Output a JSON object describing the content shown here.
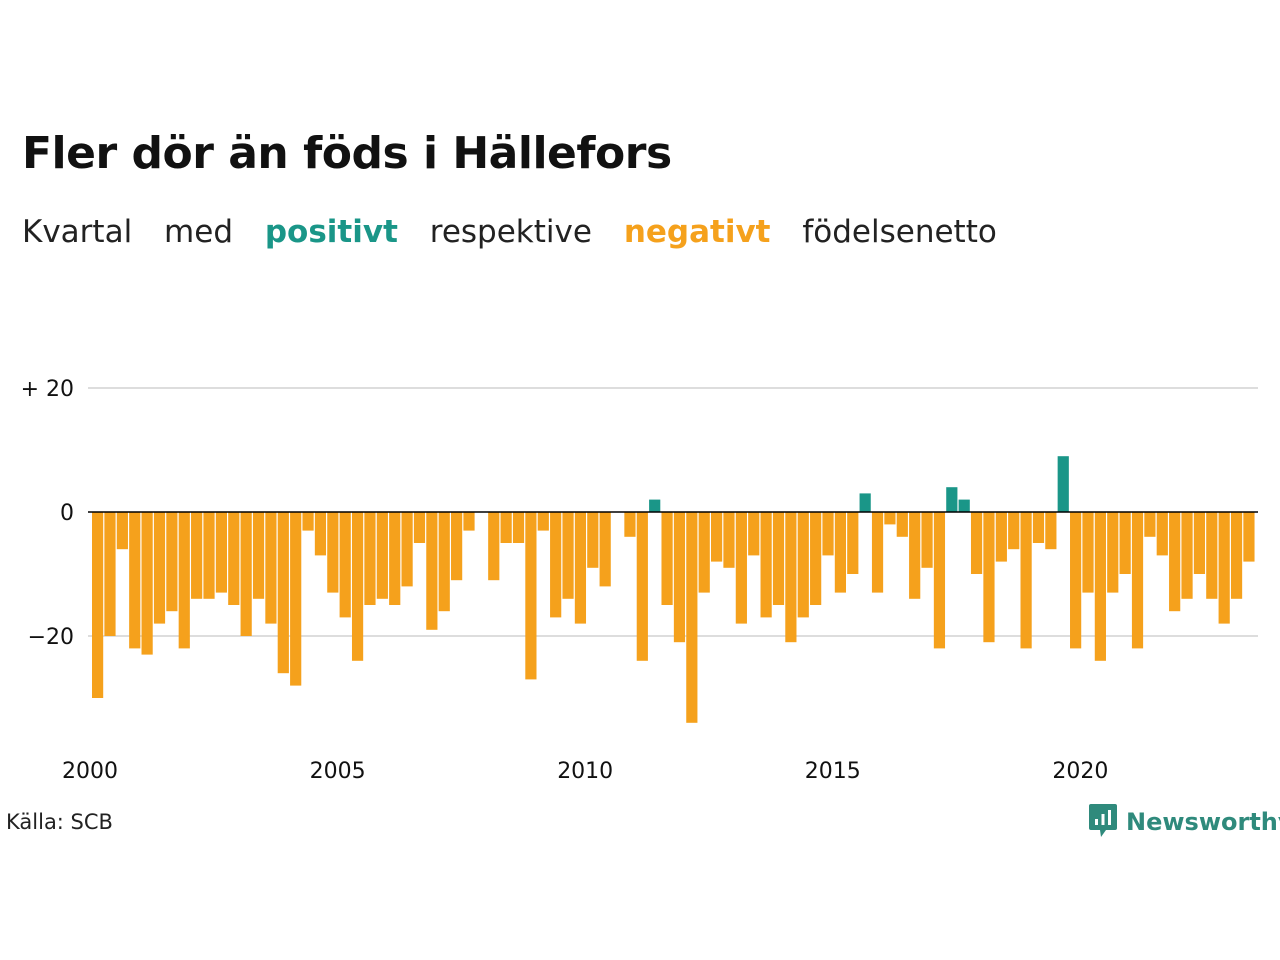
{
  "title": "Fler dör än föds i Hällefors",
  "subtitle": {
    "part1": "Kvartal",
    "part2": "med",
    "positive": "positivt",
    "part3": "respektive",
    "negative": "negativt",
    "part4": "födelsenetto"
  },
  "source": "Källa: SCB",
  "brand": {
    "name": "Newsworthy",
    "icon": "newsworthy-logo-icon"
  },
  "colors": {
    "positive": "#1a9688",
    "negative": "#f5a11c",
    "gridline": "#dddddd",
    "zero_line": "#000000",
    "brand": "#2f8a7c"
  },
  "chart_data": {
    "type": "bar",
    "x_start": "2000 Q1",
    "x_end": "2023 Q2",
    "x_ticks": [
      "2000",
      "2005",
      "2010",
      "2015",
      "2020"
    ],
    "y_ticks": [
      {
        "value": 20,
        "label": "+ 20"
      },
      {
        "value": 0,
        "label": "0"
      },
      {
        "value": -20,
        "label": "−20"
      }
    ],
    "ylim": [
      -36,
      25
    ],
    "grid": true,
    "values": [
      -30,
      -20,
      -6,
      -22,
      -23,
      -18,
      -16,
      -22,
      -14,
      -14,
      -13,
      -15,
      -20,
      -14,
      -18,
      -26,
      -28,
      -3,
      -7,
      -13,
      -17,
      -24,
      -15,
      -14,
      -15,
      -12,
      -5,
      -19,
      -16,
      -11,
      -3,
      0,
      -11,
      -5,
      -5,
      -27,
      -3,
      -17,
      -14,
      -18,
      -9,
      -12,
      0,
      -4,
      -24,
      2,
      -15,
      -21,
      -34,
      -13,
      -8,
      -9,
      -18,
      -7,
      -17,
      -15,
      -21,
      -17,
      -15,
      -7,
      -13,
      -10,
      3,
      -13,
      -2,
      -4,
      -14,
      -9,
      -22,
      4,
      2,
      -10,
      -21,
      -8,
      -6,
      -22,
      -5,
      -6,
      9,
      -22,
      -13,
      -24,
      -13,
      -10,
      -22,
      -4,
      -7,
      -16,
      -14,
      -10,
      -14,
      -18,
      -14,
      -8
    ]
  }
}
